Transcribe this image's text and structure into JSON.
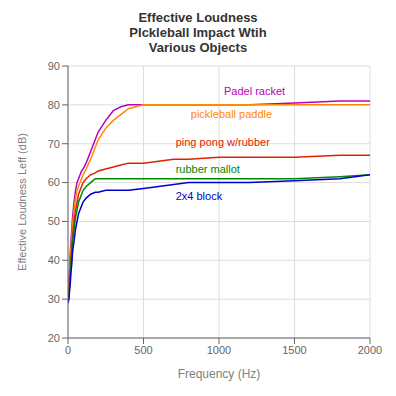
{
  "chart_data": {
    "type": "line",
    "title": "Effective Loudness\nPIckleball Impact Wtih\nVarious Objects",
    "xlabel": "Frequency (Hz)",
    "ylabel": "Effective Loudness Leff (dB)",
    "xlim": [
      0,
      2000
    ],
    "ylim": [
      20,
      90
    ],
    "xticks": [
      0,
      500,
      1000,
      1500,
      2000
    ],
    "yticks": [
      20,
      30,
      40,
      50,
      60,
      70,
      80,
      90
    ],
    "grid": true,
    "x": [
      0,
      5,
      10,
      15,
      20,
      25,
      30,
      40,
      50,
      60,
      70,
      80,
      90,
      100,
      120,
      150,
      180,
      200,
      250,
      300,
      350,
      400,
      500,
      600,
      700,
      800,
      1000,
      1200,
      1500,
      1800,
      2000
    ],
    "series": [
      {
        "name": "Padel racket",
        "color": "#bb00bb",
        "values": [
          29,
          33,
          38,
          42,
          45,
          48,
          51,
          55,
          58,
          60,
          61,
          62,
          63,
          63.5,
          65,
          68,
          71,
          73,
          76,
          78.5,
          79.5,
          80,
          80,
          80,
          80,
          80,
          80,
          80,
          80.5,
          81,
          81
        ]
      },
      {
        "name": "pickleball paddle",
        "color": "#ff8800",
        "values": [
          29,
          32,
          36,
          40,
          43,
          46,
          49,
          53,
          56,
          58,
          59,
          60,
          61,
          62,
          63.5,
          66,
          69,
          71,
          74,
          76,
          77.5,
          79,
          80,
          80,
          80,
          80,
          80,
          80,
          80,
          80,
          80
        ]
      },
      {
        "name": "ping pong w/rubber",
        "color": "#dd2200",
        "values": [
          29,
          31,
          34,
          37,
          40,
          43,
          46,
          50,
          53,
          55,
          57,
          58,
          59,
          60,
          61,
          62,
          62.5,
          63,
          63.5,
          64,
          64.5,
          65,
          65,
          65.5,
          66,
          66,
          66.5,
          66.5,
          66.5,
          67,
          67
        ]
      },
      {
        "name": "rubber mallot",
        "color": "#008800",
        "values": [
          29,
          30,
          33,
          36,
          39,
          42,
          45,
          48,
          51,
          53,
          55,
          56,
          57,
          58,
          59,
          60,
          61,
          61,
          61,
          61,
          61,
          61,
          61,
          61,
          61,
          61,
          61,
          61,
          61,
          61.5,
          62
        ]
      },
      {
        "name": "2x4 block",
        "color": "#0000cc",
        "values": [
          29,
          30,
          32,
          34,
          37,
          39,
          42,
          45,
          48,
          50,
          52,
          53,
          54,
          55,
          56,
          57,
          57.5,
          57.5,
          58,
          58,
          58,
          58,
          58.5,
          59,
          59.5,
          60,
          60,
          60,
          60.5,
          61,
          62
        ]
      }
    ],
    "annotations": [
      {
        "text": "Padel racket",
        "x": 1020,
        "y": 83.5,
        "color": "#bb00bb"
      },
      {
        "text": "pickleball paddle",
        "x": 800,
        "y": 77.5,
        "color": "#ff8800"
      },
      {
        "text": "ping pong w/rubber",
        "x": 700,
        "y": 70.5,
        "color": "#dd2200"
      },
      {
        "text": "rubber mallot",
        "x": 700,
        "y": 63.5,
        "color": "#008800"
      },
      {
        "text": "2x4 block",
        "x": 700,
        "y": 56.5,
        "color": "#0000cc"
      }
    ]
  }
}
